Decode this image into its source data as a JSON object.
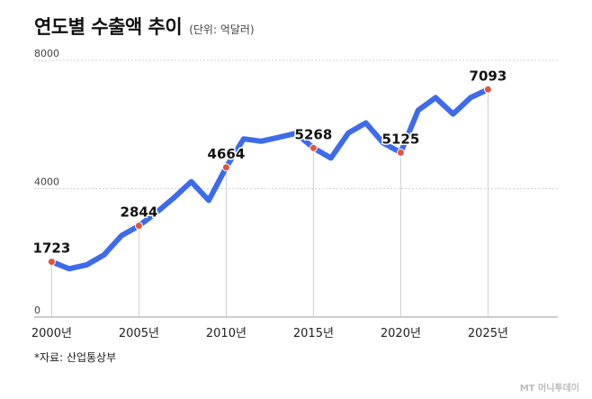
{
  "chart_data": {
    "type": "line",
    "title": "연도별 수출액 추이",
    "subtitle": "(단위: 억달러)",
    "source": "*자료: 산업통상부",
    "watermark": "MT 머니투데이",
    "y_ticks": [
      0,
      4000,
      8000
    ],
    "ylim": [
      0,
      8000
    ],
    "xlim": [
      1999,
      2029
    ],
    "x_ticks": [
      {
        "year": 2000,
        "label": "2000년"
      },
      {
        "year": 2005,
        "label": "2005년"
      },
      {
        "year": 2010,
        "label": "2010년"
      },
      {
        "year": 2015,
        "label": "2015년"
      },
      {
        "year": 2020,
        "label": "2020년"
      },
      {
        "year": 2025,
        "label": "2025년"
      }
    ],
    "line_color": "#3d6bea",
    "marker_color": "#e0563b",
    "grid": true,
    "series": [
      {
        "x": [
          2000,
          2001,
          2002,
          2003,
          2004,
          2005,
          2006,
          2007,
          2008,
          2009,
          2010,
          2011,
          2012,
          2013,
          2014,
          2015,
          2016,
          2017,
          2018,
          2019,
          2020,
          2021,
          2022,
          2023,
          2024,
          2025
        ],
        "y": [
          1723,
          1504,
          1625,
          1938,
          2538,
          2844,
          3255,
          3715,
          4220,
          3635,
          4664,
          5552,
          5479,
          5596,
          5727,
          5268,
          4954,
          5737,
          6049,
          5422,
          5125,
          6444,
          6839,
          6326,
          6838,
          7093
        ]
      }
    ],
    "labeled_points": [
      {
        "year": 2000,
        "value": 1723,
        "label": "1723"
      },
      {
        "year": 2005,
        "value": 2844,
        "label": "2844"
      },
      {
        "year": 2010,
        "value": 4664,
        "label": "4664"
      },
      {
        "year": 2015,
        "value": 5268,
        "label": "5268"
      },
      {
        "year": 2020,
        "value": 5125,
        "label": "5125"
      },
      {
        "year": 2025,
        "value": 7093,
        "label": "7093"
      }
    ]
  }
}
